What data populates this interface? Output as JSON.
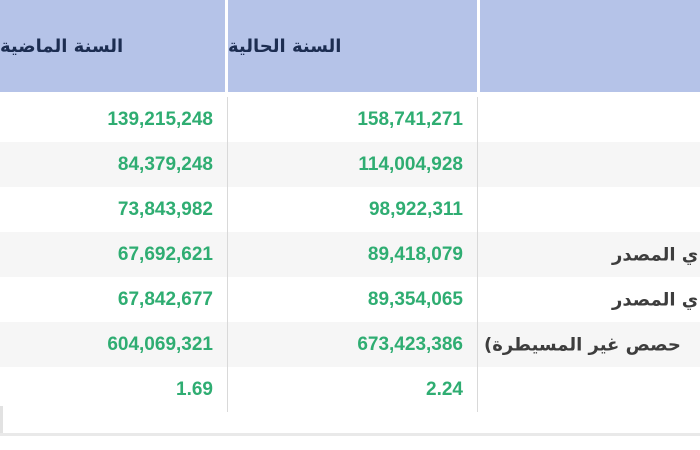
{
  "table": {
    "header": {
      "previous_year": "السنة الماضية",
      "current_year": "السنة الحالية",
      "label_column": ""
    },
    "rows": [
      {
        "label": "",
        "current": "158,741,271",
        "previous": "139,215,248"
      },
      {
        "label": "",
        "current": "114,004,928",
        "previous": "84,379,248"
      },
      {
        "label": "",
        "current": "98,922,311",
        "previous": "73,843,982"
      },
      {
        "label": "ي المصدر",
        "current": "89,418,079",
        "previous": "67,692,621"
      },
      {
        "label": "ي المصدر",
        "current": "89,354,065",
        "previous": "67,842,677"
      },
      {
        "label": "حصص غير المسيطرة)",
        "current": "673,423,386",
        "previous": "604,069,321"
      },
      {
        "label": "",
        "current": "2.24",
        "previous": "1.69"
      }
    ],
    "colors": {
      "header_bg": "#b5c3e8",
      "header_text": "#1c2d51",
      "value_text": "#2fad72",
      "row_alt_bg": "#f6f6f6",
      "label_text": "#3d3d3d",
      "border": "#d9d9d9"
    }
  }
}
